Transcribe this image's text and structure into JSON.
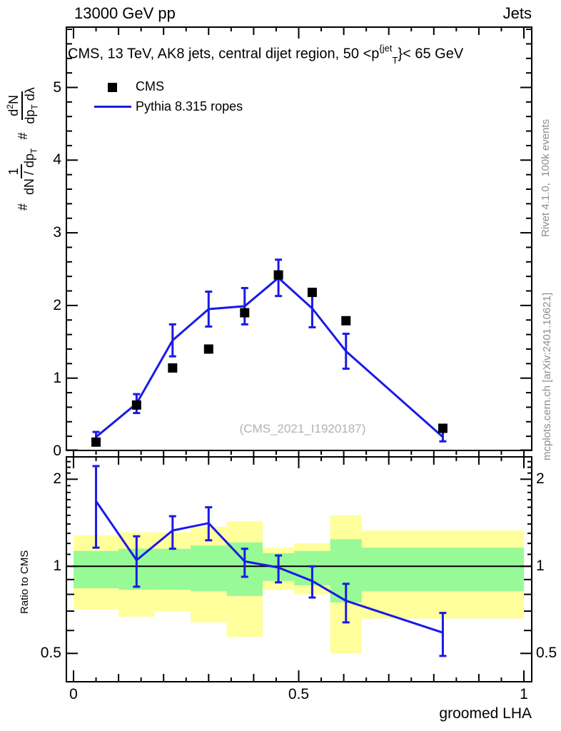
{
  "header": {
    "left": "13000 GeV pp",
    "right": "Jets"
  },
  "title": {
    "prefix": "CMS, 13 TeV, AK8 jets, central dijet region, 50 <p",
    "sup": "{jet",
    "sub": "T",
    "suffix": "}< 65 GeV"
  },
  "legend": {
    "entry1": "CMS",
    "entry2": "Pythia 8.315 ropes"
  },
  "watermark": "(CMS_2021_I1920187)",
  "side_notes": {
    "top": "Rivet 4.1.0,  100k events",
    "bottom": "mcplots.cern.ch [arXiv:2401.10621]"
  },
  "ylabel_parts": {
    "hash1": "#",
    "f1_num": "1",
    "f1_den_main": "dN / dp",
    "f1_den_sub": "T",
    "hash2": "#",
    "f2_num_a": "d",
    "f2_num_sup": "2",
    "f2_num_b": "N",
    "f2_den_a": "dp",
    "f2_den_sub": "T",
    "f2_den_b": " dλ"
  },
  "axes": {
    "x_axis_label": "groomed LHA",
    "ratio_axis_label": "Ratio to CMS",
    "x_tick_labels": [
      {
        "v": 0,
        "t": "0"
      },
      {
        "v": 0.5,
        "t": "0.5"
      },
      {
        "v": 1,
        "t": "1"
      }
    ],
    "main_y_tick_labels": [
      {
        "v": 0,
        "t": "0"
      },
      {
        "v": 1,
        "t": "1"
      },
      {
        "v": 2,
        "t": "2"
      },
      {
        "v": 3,
        "t": "3"
      },
      {
        "v": 4,
        "t": "4"
      },
      {
        "v": 5,
        "t": "5"
      }
    ],
    "ratio_y_tick_labels": [
      {
        "v": 2,
        "t": "2"
      },
      {
        "v": 1,
        "t": "1"
      },
      {
        "v": 0.5,
        "t": "0.5"
      }
    ]
  },
  "colors": {
    "mc_blue": "#1a1ae6",
    "data_black": "#000000",
    "band_yellow": "#ffff9c",
    "band_green": "#97fa97",
    "gray_text": "#8e8e8e",
    "watermark_gray": "#b2b2b2"
  },
  "chart_data": [
    {
      "type": "line",
      "panel": "main",
      "title": "CMS, 13 TeV, AK8 jets, central dijet region, 50 <p_T^{jet}< 65 GeV",
      "xlabel": "groomed LHA",
      "ylabel": "# 1/(dN/dp_T) # d^2N/(dp_T dlambda)",
      "xlim": [
        0,
        1
      ],
      "ylim": [
        0,
        5.83
      ],
      "grid": false,
      "legend_position": "top-left",
      "x": [
        0.05,
        0.14,
        0.22,
        0.3,
        0.38,
        0.455,
        0.53,
        0.605,
        0.82
      ],
      "bin_edges": [
        0,
        0.1,
        0.18,
        0.26,
        0.34,
        0.42,
        0.49,
        0.57,
        0.64,
        1.0
      ],
      "series": [
        {
          "name": "CMS",
          "style": "scatter-square",
          "color": "#000000",
          "y": [
            0.12,
            0.63,
            1.14,
            1.4,
            1.9,
            2.42,
            2.18,
            1.79,
            0.31
          ]
        },
        {
          "name": "Pythia 8.315 ropes",
          "style": "line-errorbars",
          "color": "#1a1ae6",
          "y": [
            0.19,
            0.65,
            1.52,
            1.95,
            1.99,
            2.38,
            1.96,
            1.37,
            0.19
          ],
          "err_lo": [
            0.12,
            0.52,
            1.3,
            1.71,
            1.74,
            2.13,
            1.7,
            1.13,
            0.13
          ],
          "err_hi": [
            0.26,
            0.78,
            1.74,
            2.19,
            2.24,
            2.63,
            2.22,
            1.61,
            0.26
          ]
        }
      ]
    },
    {
      "type": "line",
      "panel": "ratio",
      "ylabel": "Ratio to CMS",
      "yscale": "log",
      "ylim": [
        0.4,
        2.39
      ],
      "yticks": [
        0.5,
        1,
        2
      ],
      "x": [
        0.05,
        0.14,
        0.22,
        0.3,
        0.38,
        0.455,
        0.53,
        0.605,
        0.82
      ],
      "ratio": [
        1.68,
        1.05,
        1.33,
        1.41,
        1.04,
        0.99,
        0.89,
        0.76,
        0.59
      ],
      "err_lo": [
        1.16,
        0.85,
        1.15,
        1.23,
        0.92,
        0.88,
        0.78,
        0.64,
        0.49
      ],
      "err_hi": [
        2.22,
        1.27,
        1.49,
        1.6,
        1.15,
        1.09,
        1.0,
        0.87,
        0.69
      ],
      "bands": {
        "bin_edges": [
          0,
          0.1,
          0.18,
          0.26,
          0.34,
          0.42,
          0.49,
          0.57,
          0.64,
          1.0
        ],
        "yellow_lo": [
          0.71,
          0.67,
          0.7,
          0.64,
          0.57,
          0.83,
          0.8,
          0.5,
          0.66
        ],
        "yellow_hi": [
          1.28,
          1.31,
          1.31,
          1.37,
          1.43,
          1.16,
          1.2,
          1.5,
          1.33
        ],
        "green_lo": [
          0.84,
          0.83,
          0.83,
          0.82,
          0.79,
          0.89,
          0.86,
          0.75,
          0.82
        ],
        "green_hi": [
          1.13,
          1.15,
          1.15,
          1.18,
          1.21,
          1.11,
          1.13,
          1.24,
          1.16
        ]
      }
    }
  ]
}
